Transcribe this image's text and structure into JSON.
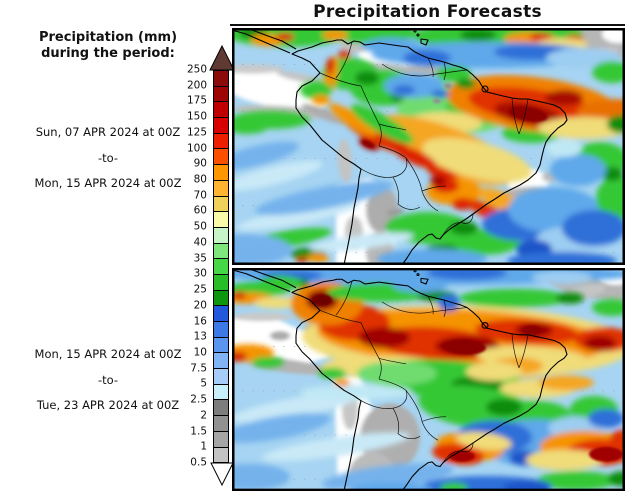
{
  "title": "Precipitation Forecasts",
  "legend": {
    "heading_line1": "Precipitation (mm)",
    "heading_line2": "during the period:",
    "colorbar": {
      "ticks": [
        "250",
        "200",
        "175",
        "150",
        "125",
        "100",
        "90",
        "80",
        "70",
        "60",
        "50",
        "40",
        "35",
        "30",
        "25",
        "20",
        "16",
        "13",
        "10",
        "7.5",
        "5",
        "2.5",
        "2",
        "1.5",
        "1",
        "0.5"
      ],
      "cell_colors": [
        "#8B0A0A",
        "#9E0505",
        "#C00000",
        "#D80000",
        "#EE1E00",
        "#FA5000",
        "#FF9600",
        "#FFB432",
        "#F0D25A",
        "#FAFAAA",
        "#C8F5C8",
        "#7DE67D",
        "#46D746",
        "#28BE28",
        "#0F960F",
        "#2358DC",
        "#3C78E6",
        "#5A96F0",
        "#82B4F5",
        "#A5CDF8",
        "#C8F0FA",
        "#7D7D7D",
        "#919191",
        "#A5A5A5",
        "#C3C3C3"
      ],
      "overflow_arrow_color": "#5E3A32",
      "underflow_arrow_color": "#FFFFFF"
    }
  },
  "maps": [
    {
      "name": "precip-map-week1",
      "period": {
        "start": "Sun, 07 APR 2024 at 00Z",
        "separator": "-to-",
        "end": "Mon, 15 APR 2024 at 00Z"
      }
    },
    {
      "name": "precip-map-week2",
      "period": {
        "start": "Mon, 15 APR 2024 at 00Z",
        "separator": "-to-",
        "end": "Tue, 23 APR 2024 at 00Z"
      }
    }
  ]
}
